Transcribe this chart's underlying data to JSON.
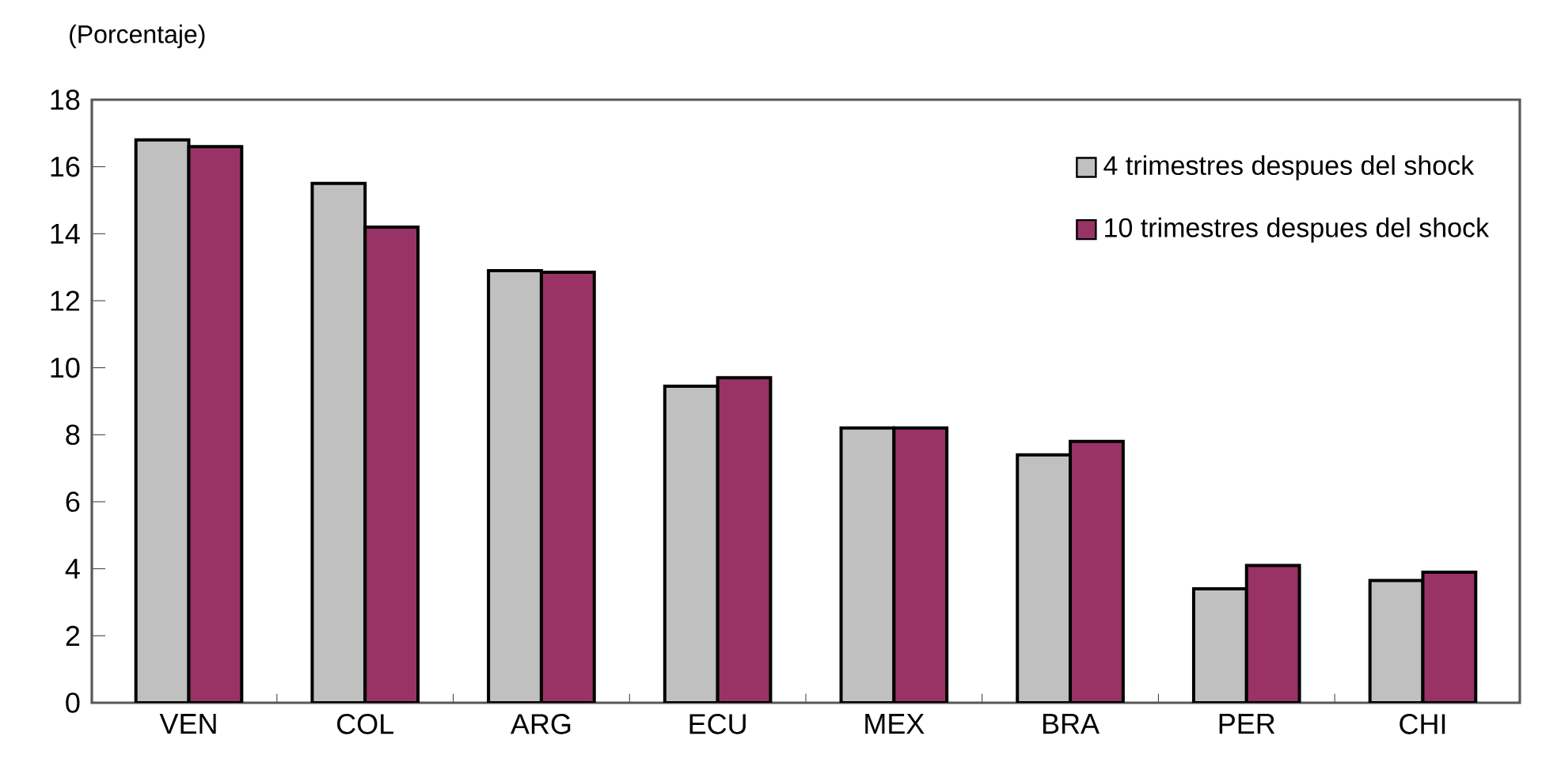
{
  "chart_data": {
    "type": "bar",
    "ylabel": "(Porcentaje)",
    "categories": [
      "VEN",
      "COL",
      "ARG",
      "ECU",
      "MEX",
      "BRA",
      "PER",
      "CHI"
    ],
    "series": [
      {
        "name": "4 trimestres despues del shock",
        "color": "#c0c0c0",
        "values": [
          16.8,
          15.5,
          12.9,
          9.45,
          8.2,
          7.4,
          3.4,
          3.65
        ]
      },
      {
        "name": "10 trimestres despues del shock",
        "color": "#993366",
        "values": [
          16.6,
          14.2,
          12.85,
          9.7,
          8.2,
          7.8,
          4.1,
          3.9
        ]
      }
    ],
    "ylim": [
      0,
      18
    ],
    "yticks": [
      0,
      2,
      4,
      6,
      8,
      10,
      12,
      14,
      16,
      18
    ],
    "legend": "top right",
    "grid": false
  }
}
